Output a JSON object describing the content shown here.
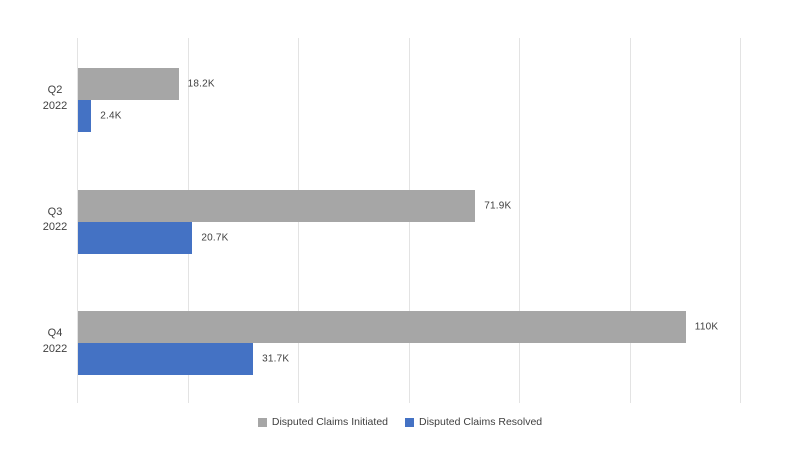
{
  "chart_data": {
    "type": "bar",
    "orientation": "horizontal",
    "title": "",
    "categories": [
      "Q2\n2022",
      "Q3\n2022",
      "Q4\n2022"
    ],
    "series": [
      {
        "name": "Disputed Claims Initiated",
        "color": "#A6A6A6",
        "values": [
          18200,
          71900,
          110000
        ],
        "value_labels": [
          "18.2K",
          "71.9K",
          "110K"
        ]
      },
      {
        "name": "Disputed Claims Resolved",
        "color": "#4472C4",
        "values": [
          2400,
          20700,
          31700
        ],
        "value_labels": [
          "2.4K",
          "20.7K",
          "31.7K"
        ]
      }
    ],
    "xlim": [
      0,
      120000
    ],
    "gridline_step": 20000,
    "grid": true,
    "legend_position": "bottom",
    "colors": {
      "gridline": "#E3E3E3",
      "label_text": "#404040",
      "background": "#FFFFFF"
    }
  }
}
